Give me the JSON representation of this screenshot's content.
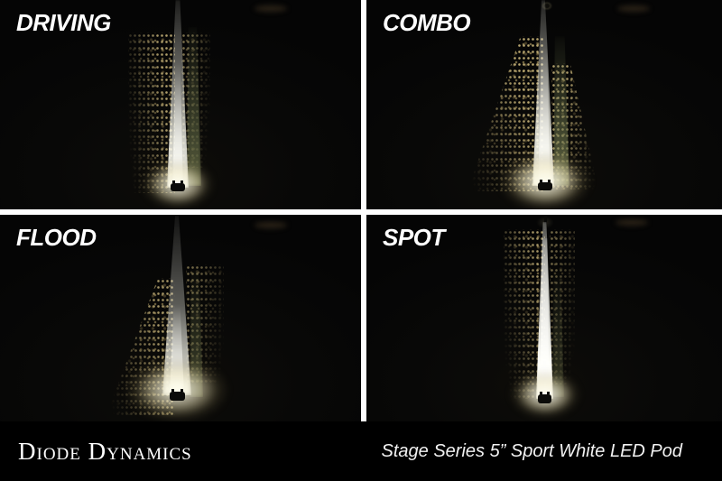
{
  "panels": [
    {
      "id": "driving",
      "label": "DRIVING"
    },
    {
      "id": "combo",
      "label": "COMBO"
    },
    {
      "id": "flood",
      "label": "FLOOD"
    },
    {
      "id": "spot",
      "label": "SPOT"
    }
  ],
  "footer": {
    "brand": "Diode Dynamics",
    "product": "Stage Series 5” Sport White LED Pod"
  },
  "colors": {
    "divider": "#ffffff",
    "footer_bg": "#000000",
    "photo_bg": "#060606",
    "beam_white": "#fffdf0",
    "scatter_tan": "#b99f63",
    "grass_olive": "#77805a",
    "text": "#ffffff"
  }
}
